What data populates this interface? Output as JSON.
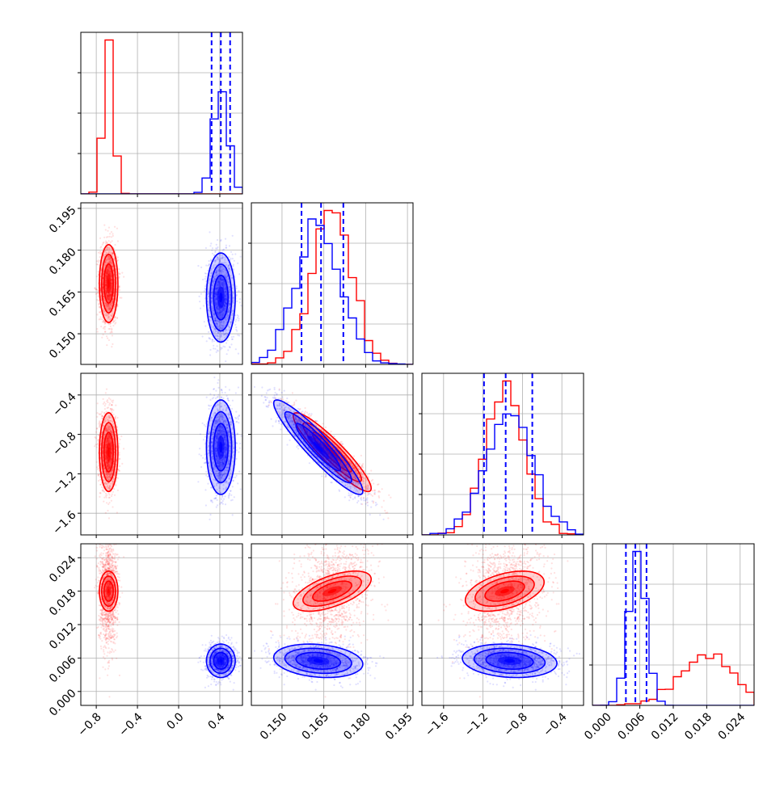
{
  "chart_data": {
    "type": "corner",
    "title": "",
    "series": [
      {
        "color": "#ff0000",
        "means": [
          -0.68,
          0.168,
          -0.98,
          0.018
        ],
        "sds": [
          0.045,
          0.007,
          0.2,
          0.0018
        ],
        "correlations": {
          "p1_p2": -0.92,
          "p1_p3": 0.6,
          "p2_p3": 0.45
        }
      },
      {
        "color": "#0000ff",
        "means": [
          0.41,
          0.163,
          -0.93,
          0.0055
        ],
        "sds": [
          0.07,
          0.008,
          0.24,
          0.0015
        ],
        "correlations": {
          "p1_p2": -0.93,
          "p1_p3": -0.2,
          "p2_p3": -0.15
        }
      }
    ],
    "quantile_lines_blue": [
      [
        0.32,
        0.41,
        0.5
      ],
      [
        0.157,
        0.164,
        0.172
      ],
      [
        -1.19,
        -0.97,
        -0.7
      ],
      [
        0.0035,
        0.0052,
        0.0072
      ]
    ],
    "axes": [
      {
        "range": [
          -0.95,
          0.62
        ],
        "ticks": [
          -0.8,
          -0.4,
          0.0,
          0.4
        ],
        "tick_labels": [
          "−0.8",
          "−0.4",
          "0.0",
          "0.4"
        ]
      },
      {
        "range": [
          0.139,
          0.197
        ],
        "ticks": [
          0.15,
          0.165,
          0.18,
          0.195
        ],
        "tick_labels": [
          "0.150",
          "0.165",
          "0.180",
          "0.195"
        ]
      },
      {
        "range": [
          -1.82,
          -0.18
        ],
        "ticks": [
          -1.6,
          -1.2,
          -0.8,
          -0.4
        ],
        "tick_labels": [
          "−1.6",
          "−1.2",
          "−0.8",
          "−0.4"
        ]
      },
      {
        "range": [
          -0.0025,
          0.0265
        ],
        "ticks": [
          0.0,
          0.006,
          0.012,
          0.018,
          0.024
        ],
        "tick_labels": [
          "0.000",
          "0.006",
          "0.012",
          "0.018",
          "0.024"
        ]
      }
    ],
    "grid": true,
    "legend": "none"
  }
}
